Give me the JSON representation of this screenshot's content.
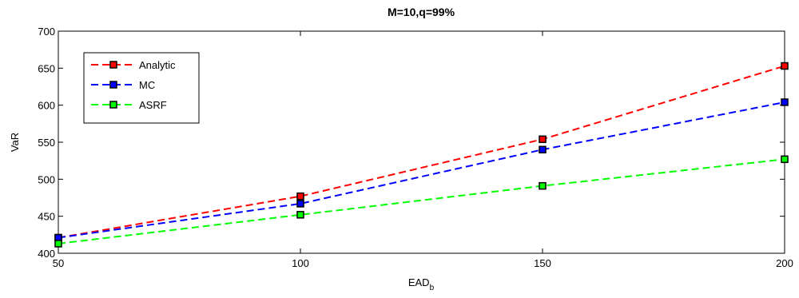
{
  "chart_data": {
    "type": "line",
    "title": "M=10,q=99%",
    "xlabel": "EAD",
    "xlabel_subscript": "b",
    "ylabel": "VaR",
    "xlim": [
      50,
      200
    ],
    "ylim": [
      400,
      700
    ],
    "x_ticks": [
      50,
      100,
      150,
      200
    ],
    "y_ticks": [
      400,
      450,
      500,
      550,
      600,
      650,
      700
    ],
    "grid": false,
    "legend_position": "top-left",
    "x": [
      50,
      100,
      150,
      200
    ],
    "series": [
      {
        "name": "Analytic",
        "color": "#ff0000",
        "values": [
          421,
          477,
          554,
          653
        ]
      },
      {
        "name": "MC",
        "color": "#0000ff",
        "values": [
          421,
          467,
          540,
          604
        ]
      },
      {
        "name": "ASRF",
        "color": "#00ff00",
        "values": [
          413,
          452,
          491,
          527
        ]
      }
    ]
  }
}
